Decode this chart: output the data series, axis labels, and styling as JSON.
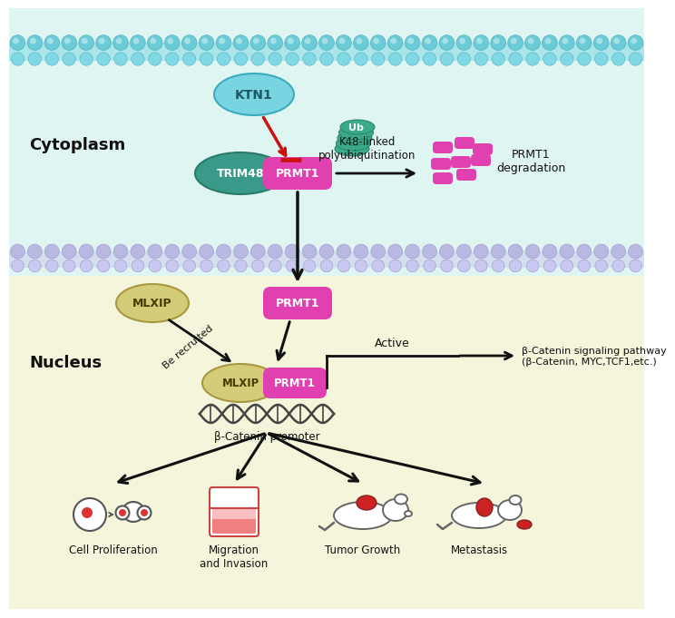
{
  "bg_top": "#dff5f2",
  "bg_nucleus": "#f5f5dc",
  "membrane_top_color": "#70ccd8",
  "membrane_nuc_color": "#b8b8e0",
  "ktn1_fc": "#78d4e0",
  "ktn1_ec": "#3aacbe",
  "trim48_fc": "#3a9a8a",
  "trim48_ec": "#2a7a6a",
  "prmt1_fc": "#e040b0",
  "mlxip_fc": "#d4cc78",
  "mlxip_ec": "#a89840",
  "ub_fc": "#3aaa8a",
  "frag_fc": "#e040b0",
  "cytoplasm_label": "Cytoplasm",
  "nucleus_label": "Nucleus",
  "ktn1_label": "KTN1",
  "trim48_label": "TRIM48",
  "prmt1_label": "PRMT1",
  "mlxip_label": "MLXIP",
  "ub_label": "Ub",
  "k48_text": "K48-linked\npolyubiquitination",
  "prmt1_deg_text": "PRMT1\ndegradation",
  "be_recruited_text": "Be recruited",
  "beta_catenin_promoter": "β-Catenin promoter",
  "active_text": "Active",
  "beta_pathway_text": "β-Catenin signaling pathway\n(β-Catenin, MYC,TCF1,etc.)",
  "cell_prolif_text": "Cell Proliferation",
  "migration_text": "Migration\nand Invasion",
  "tumor_text": "Tumor Growth",
  "metastasis_text": "Metastasis"
}
